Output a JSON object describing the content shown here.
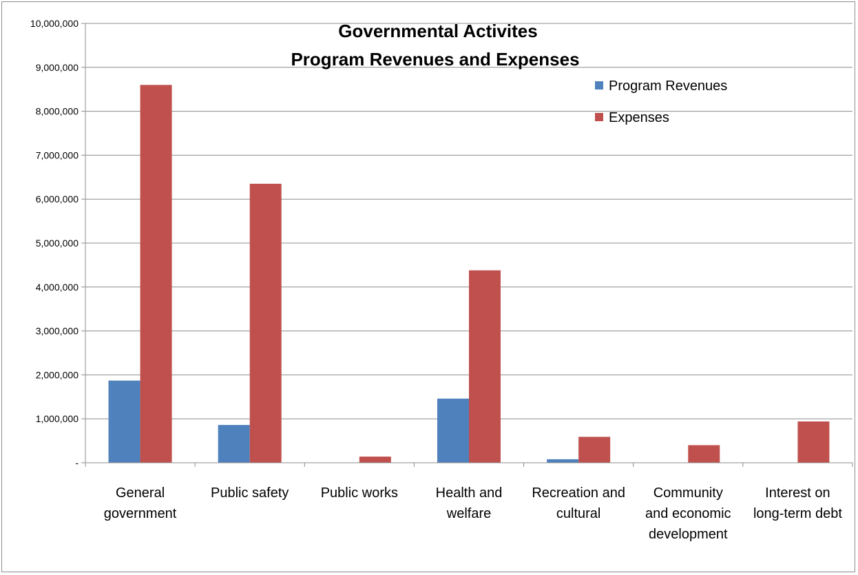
{
  "chart_data": {
    "type": "bar",
    "title_lines": [
      "Governmental Activites",
      "Program Revenues and Expenses"
    ],
    "categories": [
      [
        "General",
        "government"
      ],
      [
        "Public safety"
      ],
      [
        "Public works"
      ],
      [
        "Health and",
        "welfare"
      ],
      [
        "Recreation and",
        "cultural"
      ],
      [
        "Community",
        "and economic",
        "development"
      ],
      [
        "Interest on",
        "long-term debt"
      ]
    ],
    "series": [
      {
        "name": "Program Revenues",
        "color": "#4F81BD",
        "values": [
          1870000,
          860000,
          0,
          1460000,
          80000,
          0,
          0
        ]
      },
      {
        "name": "Expenses",
        "color": "#C0504D",
        "values": [
          8600000,
          6350000,
          140000,
          4380000,
          590000,
          400000,
          940000
        ]
      }
    ],
    "ylim": [
      0,
      10000000
    ],
    "yticks": [
      "-",
      "1,000,000",
      "2,000,000",
      "3,000,000",
      "4,000,000",
      "5,000,000",
      "6,000,000",
      "7,000,000",
      "8,000,000",
      "9,000,000",
      "10,000,000"
    ],
    "grid": true,
    "legend_position": "top-right"
  }
}
